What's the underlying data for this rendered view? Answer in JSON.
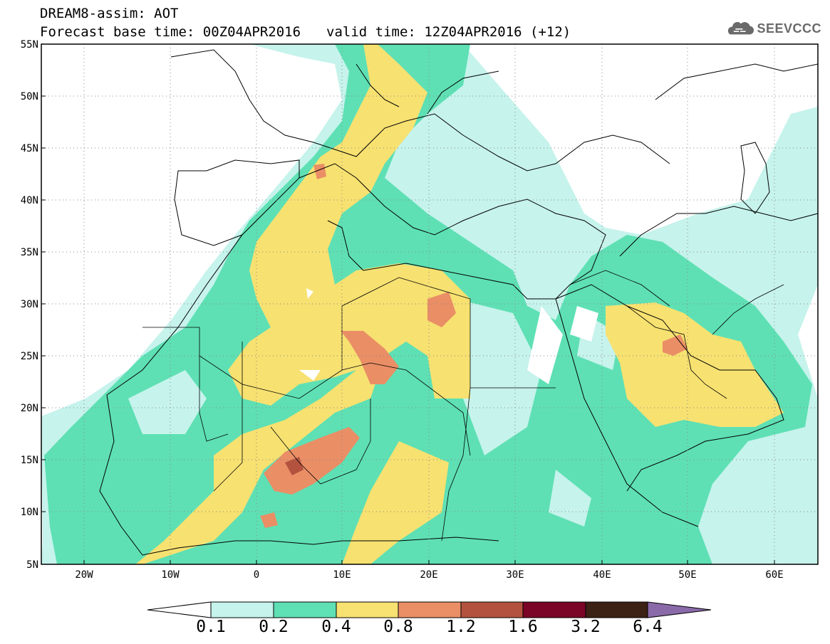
{
  "header": {
    "title_line1": "DREAM8-assim: AOT",
    "forecast_base": "Forecast base time: 00Z04APR2016",
    "valid_time": "valid time: 12Z04APR2016 (+12)"
  },
  "logo": {
    "text": "SEEVCCC",
    "icon": "cloud-icon"
  },
  "map": {
    "extent": {
      "lon": [
        -25,
        65
      ],
      "lat": [
        5,
        55
      ]
    },
    "lat_ticks": [
      "55N",
      "50N",
      "45N",
      "40N",
      "35N",
      "30N",
      "25N",
      "20N",
      "15N",
      "10N",
      "5N"
    ],
    "lon_ticks": [
      "20W",
      "10W",
      "0",
      "10E",
      "20E",
      "30E",
      "40E",
      "50E",
      "60E"
    ],
    "grid": "dotted",
    "ocean_color": "#ffffff",
    "land_border_color": "#000000"
  },
  "colorbar": {
    "labels": [
      "0.1",
      "0.2",
      "0.4",
      "0.8",
      "1.2",
      "1.6",
      "3.2",
      "6.4"
    ],
    "colors": [
      "#ffffff",
      "#c6f3ec",
      "#5ee0b4",
      "#f7e171",
      "#ea8e66",
      "#b3533f",
      "#7b0527",
      "#3c2115",
      "#8a6aa8"
    ]
  }
}
